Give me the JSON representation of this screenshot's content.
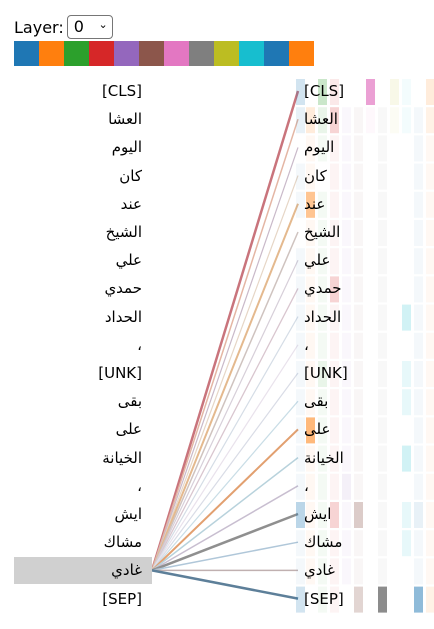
{
  "layer_control": {
    "label": "Layer:",
    "selected": "0"
  },
  "head_colors": [
    "#1f77b4",
    "#ff7f0e",
    "#2ca02c",
    "#d62728",
    "#9467bd",
    "#8c564b",
    "#e377c2",
    "#7f7f7f",
    "#bcbd22",
    "#17becf",
    "#1f77b4",
    "#ff7f0e"
  ],
  "tokens": [
    "[CLS]",
    "العشا",
    "اليوم",
    "كان",
    "عند",
    "الشيخ",
    "علي",
    "حمدي",
    "الحداد",
    "،",
    "[UNK]",
    "بقى",
    "على",
    "الخيانة",
    "،",
    "ايش",
    "مشاك",
    "غادي",
    "[SEP]"
  ],
  "selected_token": "غادي"
}
